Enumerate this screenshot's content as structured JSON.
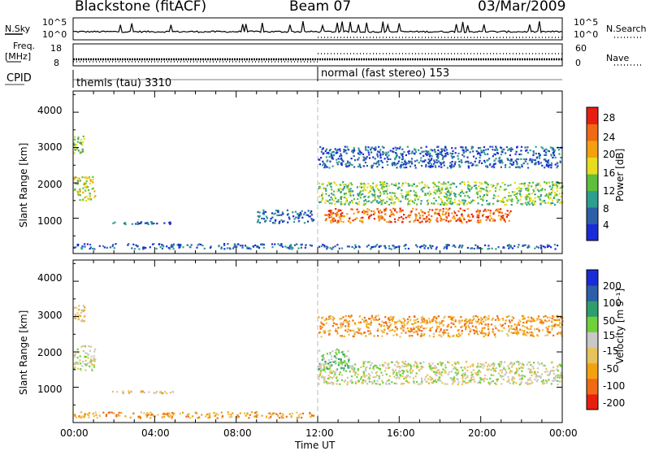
{
  "header": {
    "station": "Blackstone (fitACF)",
    "beam": "Beam 07",
    "date": "03/Mar/2009"
  },
  "summary_panels": {
    "nsky_label": "N.Sky",
    "nsky_ticks": [
      "10^5",
      "10^0"
    ],
    "nsearch_label": "N.Search",
    "nsearch_ticks": [
      "10^5",
      "10^0"
    ],
    "freq_label": "Freq.",
    "freq_unit": "[MHz]",
    "freq_ticks": [
      "18",
      "8"
    ],
    "nave_label": "Nave",
    "nave_ticks": [
      "60",
      "0"
    ],
    "cpid_label": "CPID",
    "cpid_segments": [
      {
        "text": "themis (tau) 3310",
        "start_hour": 0
      },
      {
        "text": "normal (fast stereo) 153",
        "start_hour": 12
      }
    ]
  },
  "colors": {
    "power": [
      "#1a2bd8",
      "#2c5fa8",
      "#2e9e8e",
      "#5fbf3a",
      "#e8dc1e",
      "#f4a10f",
      "#ef6a14",
      "#e81f10"
    ],
    "velocity": [
      "#e81f10",
      "#ef6a14",
      "#f4a10f",
      "#e8c25a",
      "#c8c8c8",
      "#6fd13a",
      "#2e9e6e",
      "#2c5fa8",
      "#1a2bd8"
    ]
  },
  "chart_data": [
    {
      "type": "heatmap",
      "name": "power",
      "xlabel": "",
      "ylabel": "Slant Range [km]",
      "xlim": [
        0,
        24
      ],
      "ylim": [
        0,
        4600
      ],
      "yticks": [
        "1000",
        "2000",
        "3000",
        "4000"
      ],
      "colorbar": {
        "label": "Power [dB]",
        "ticks": [
          "4",
          "8",
          "12",
          "16",
          "20",
          "24",
          "28"
        ]
      },
      "regions": [
        {
          "t": [
            0.0,
            0.55
          ],
          "r": [
            2850,
            3400
          ],
          "level": 3
        },
        {
          "t": [
            0.0,
            1.05
          ],
          "r": [
            1500,
            2200
          ],
          "level": 4
        },
        {
          "t": [
            1.9,
            4.9
          ],
          "r": [
            850,
            920
          ],
          "level": 1
        },
        {
          "t": [
            0.0,
            11.8
          ],
          "r": [
            150,
            300
          ],
          "level": 1
        },
        {
          "t": [
            9.0,
            11.8
          ],
          "r": [
            880,
            1250
          ],
          "level": 1
        },
        {
          "t": [
            12.0,
            24.0
          ],
          "r": [
            1400,
            2050
          ],
          "level": 3
        },
        {
          "t": [
            12.3,
            21.5
          ],
          "r": [
            900,
            1300
          ],
          "level": 6
        },
        {
          "t": [
            12.0,
            24.0
          ],
          "r": [
            2450,
            3050
          ],
          "level": 1
        },
        {
          "t": [
            12.0,
            24.0
          ],
          "r": [
            150,
            280
          ],
          "level": 1
        }
      ]
    },
    {
      "type": "heatmap",
      "name": "velocity",
      "xlabel": "Time UT",
      "ylabel": "Slant Range [km]",
      "xlim": [
        0,
        24
      ],
      "ylim": [
        0,
        4600
      ],
      "xticks": [
        "00:00",
        "04:00",
        "08:00",
        "12:00",
        "16:00",
        "20:00",
        "00:00"
      ],
      "yticks": [
        "1000",
        "2000",
        "3000",
        "4000"
      ],
      "colorbar": {
        "label": "Velocity [m s⁻¹]",
        "ticks": [
          "200",
          "100",
          "50",
          "15",
          "-15",
          "-50",
          "-100",
          "-200"
        ]
      },
      "regions": [
        {
          "t": [
            0.0,
            0.55
          ],
          "r": [
            2850,
            3400
          ],
          "level": 3
        },
        {
          "t": [
            0.0,
            1.05
          ],
          "r": [
            1500,
            2200
          ],
          "level": 4
        },
        {
          "t": [
            1.9,
            4.9
          ],
          "r": [
            850,
            920
          ],
          "level": 3
        },
        {
          "t": [
            0.0,
            11.8
          ],
          "r": [
            150,
            320
          ],
          "level": 2
        },
        {
          "t": [
            12.0,
            24.0
          ],
          "r": [
            1100,
            1750
          ],
          "level": 4
        },
        {
          "t": [
            12.0,
            13.5
          ],
          "r": [
            1500,
            2100
          ],
          "level": 5
        },
        {
          "t": [
            12.0,
            24.0
          ],
          "r": [
            2450,
            3050
          ],
          "level": 2
        }
      ]
    }
  ]
}
